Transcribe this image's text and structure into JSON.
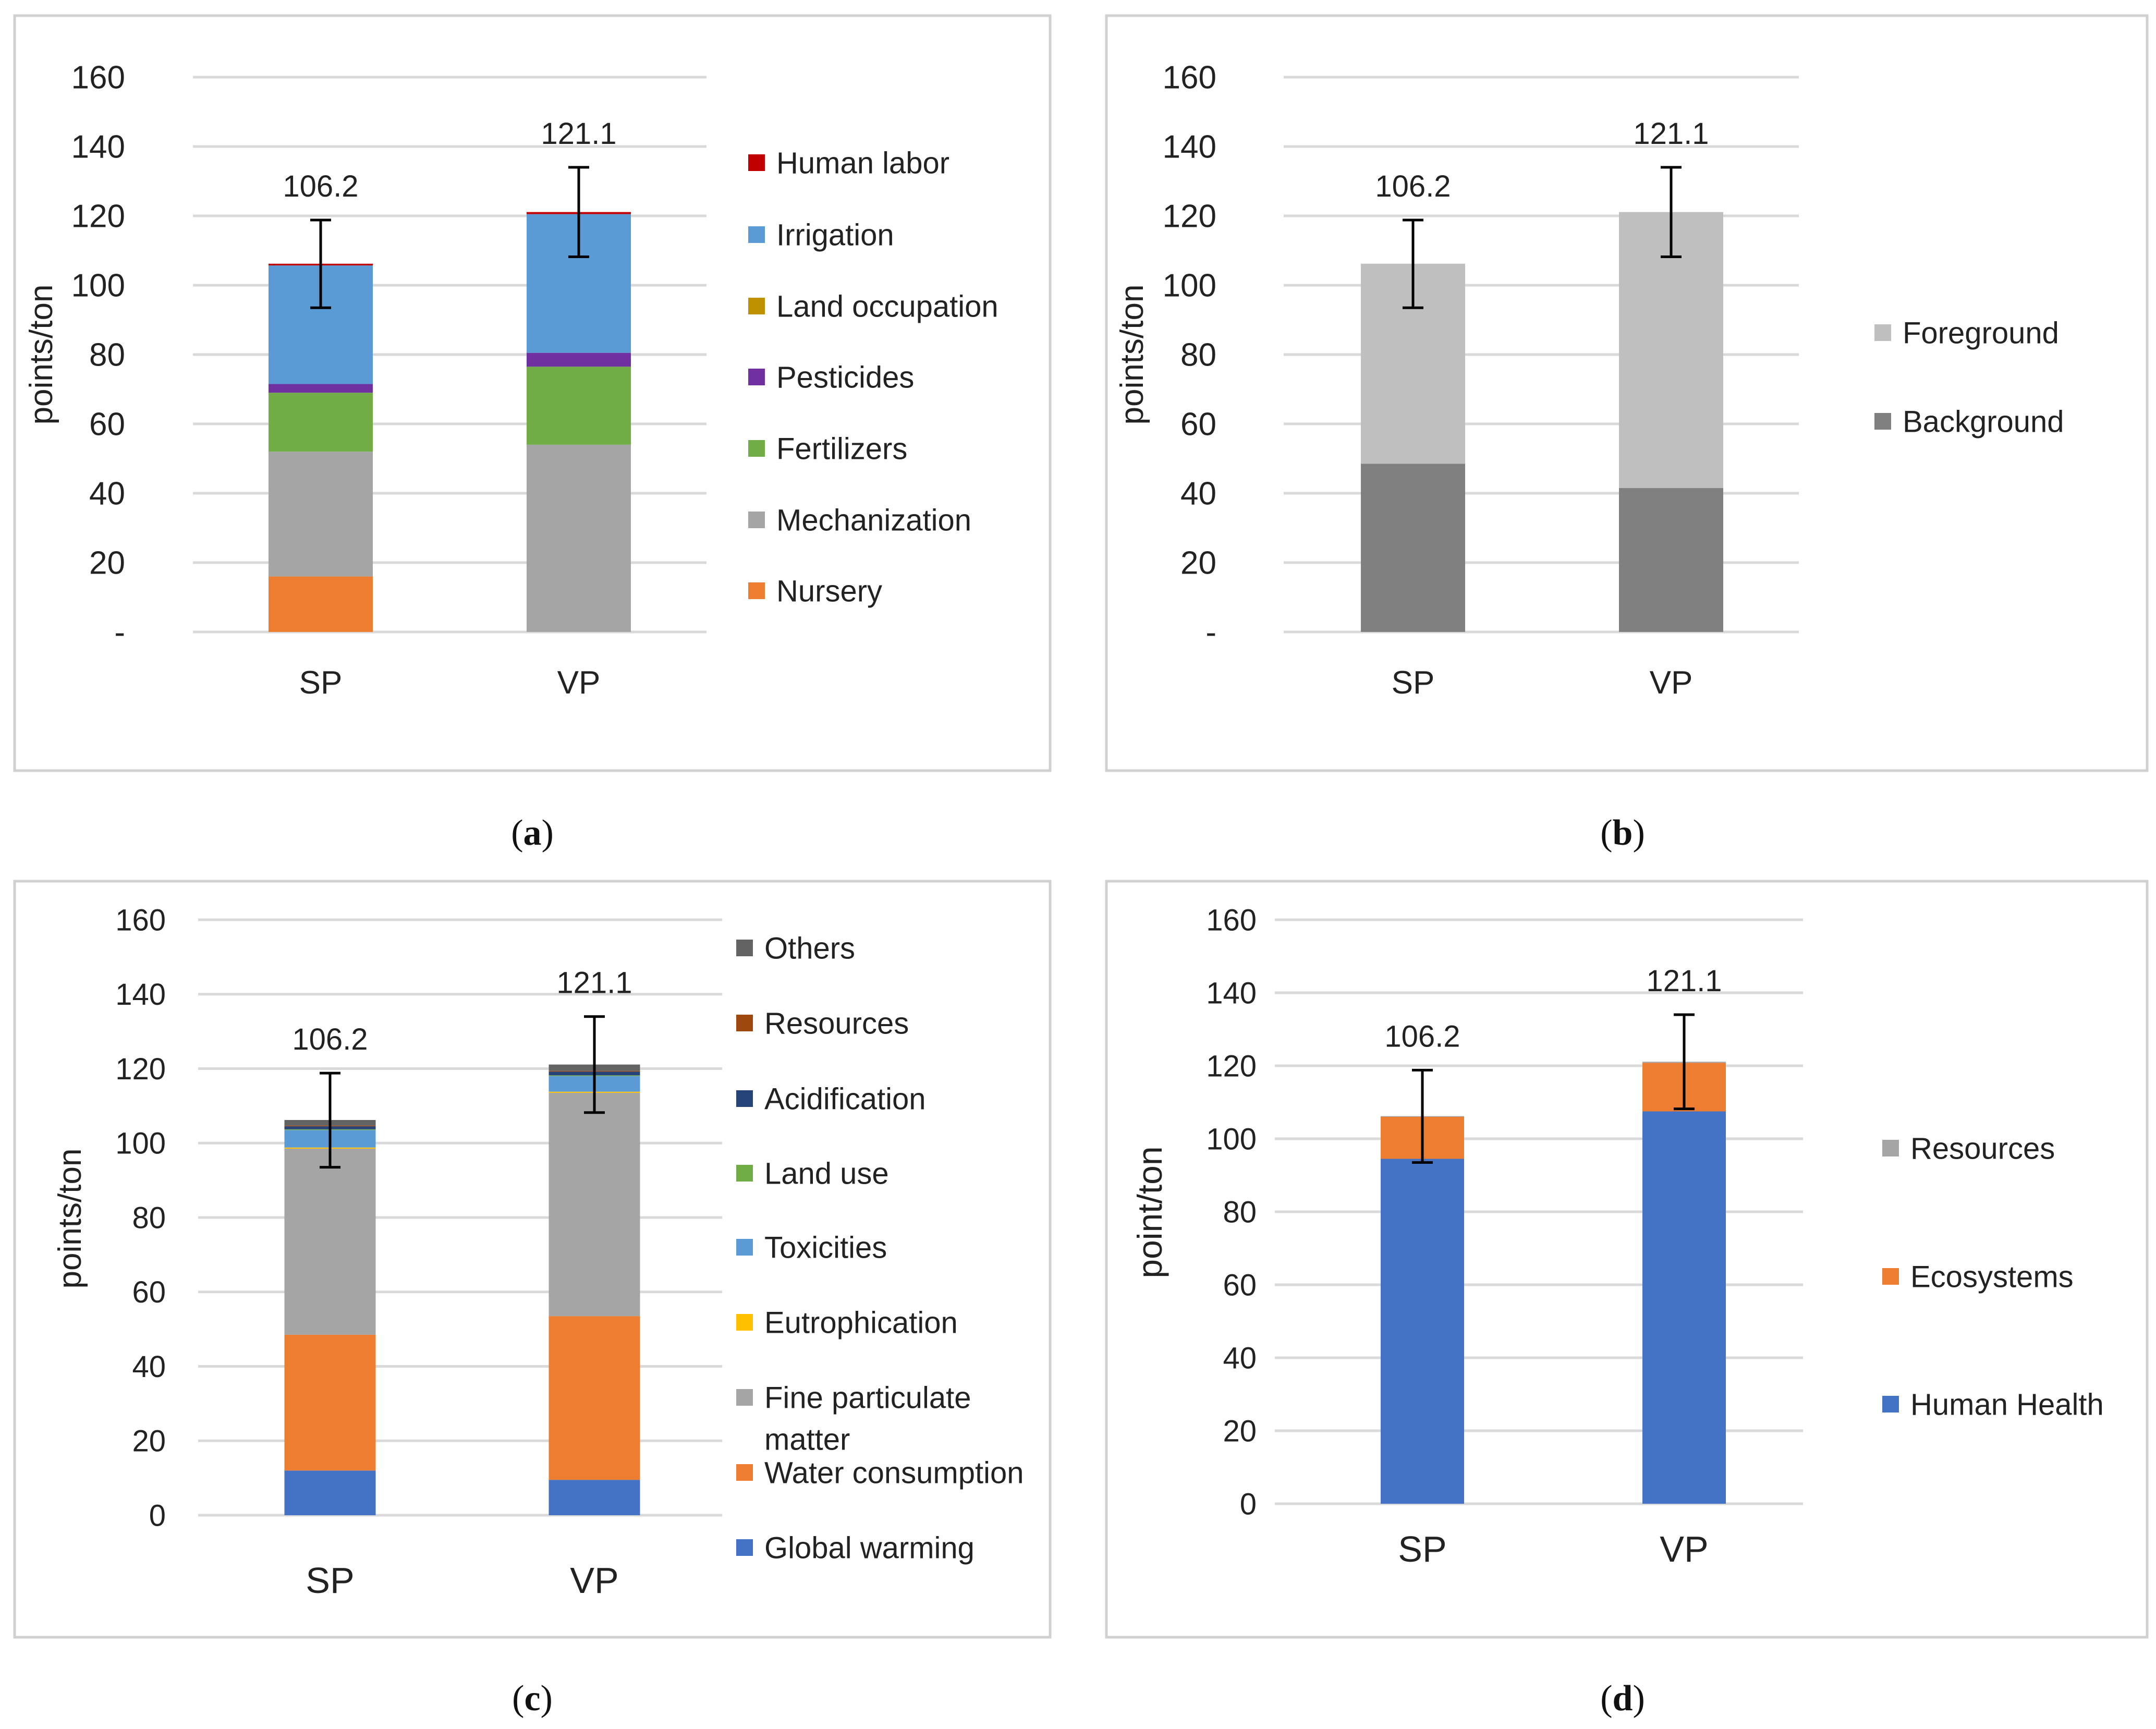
{
  "charts": [
    {
      "id": "a",
      "caption": "(a)",
      "type": "stacked-bar",
      "ylabel": "points/ton",
      "ylim": [
        0,
        160
      ],
      "yticks": [
        "-",
        "20",
        "40",
        "60",
        "80",
        "100",
        "120",
        "140",
        "160"
      ],
      "categories": [
        "SP",
        "VP"
      ],
      "totals": [
        "106.2",
        "121.1"
      ],
      "errors": [
        [
          93.5,
          118.8
        ],
        [
          108.2,
          134.0
        ]
      ],
      "legend_order": [
        "Human labor",
        "Irrigation",
        "Land occupation",
        "Pesticides",
        "Fertilizers",
        "Mechanization",
        "Nursery"
      ],
      "series": [
        {
          "name": "Nursery",
          "color": "#ED7D31",
          "values": [
            16,
            0
          ]
        },
        {
          "name": "Mechanization",
          "color": "#A5A5A5",
          "values": [
            36,
            54
          ]
        },
        {
          "name": "Fertilizers",
          "color": "#70AD47",
          "values": [
            17,
            22.5
          ]
        },
        {
          "name": "Pesticides",
          "color": "#7030A0",
          "values": [
            2.5,
            4
          ]
        },
        {
          "name": "Land occupation",
          "color": "#BF9000",
          "values": [
            0,
            0
          ]
        },
        {
          "name": "Irrigation",
          "color": "#5B9BD5",
          "values": [
            34.2,
            40
          ]
        },
        {
          "name": "Human labor",
          "color": "#C00000",
          "values": [
            0.5,
            0.6
          ]
        }
      ]
    },
    {
      "id": "b",
      "caption": "(b)",
      "type": "stacked-bar",
      "ylabel": "points/ton",
      "ylim": [
        0,
        160
      ],
      "yticks": [
        "-",
        "20",
        "40",
        "60",
        "80",
        "100",
        "120",
        "140",
        "160"
      ],
      "categories": [
        "SP",
        "VP"
      ],
      "totals": [
        "106.2",
        "121.1"
      ],
      "errors": [
        [
          93.5,
          118.8
        ],
        [
          108.2,
          134.0
        ]
      ],
      "legend_order": [
        "Foreground",
        "Background"
      ],
      "series": [
        {
          "name": "Background",
          "color": "#808080",
          "values": [
            48.5,
            41.5
          ]
        },
        {
          "name": "Foreground",
          "color": "#BFBFBF",
          "values": [
            57.7,
            79.6
          ]
        }
      ]
    },
    {
      "id": "c",
      "caption": "(c)",
      "type": "stacked-bar",
      "ylabel": "points/ton",
      "ylim": [
        0,
        160
      ],
      "yticks": [
        "0",
        "20",
        "40",
        "60",
        "80",
        "100",
        "120",
        "140",
        "160"
      ],
      "categories": [
        "SP",
        "VP"
      ],
      "totals": [
        "106.2",
        "121.1"
      ],
      "errors": [
        [
          93.5,
          118.8
        ],
        [
          108.2,
          134.0
        ]
      ],
      "legend_order": [
        "Others",
        "Resources",
        "Acidification",
        "Land use",
        "Toxicities",
        "Eutrophication",
        "Fine particulate matter",
        "Water consumption",
        "Global warming"
      ],
      "series": [
        {
          "name": "Global warming",
          "color": "#4472C4",
          "values": [
            12,
            9.5
          ]
        },
        {
          "name": "Water consumption",
          "color": "#ED7D31",
          "values": [
            36.5,
            44
          ]
        },
        {
          "name": "Fine particulate matter",
          "color": "#A5A5A5",
          "values": [
            50,
            60
          ]
        },
        {
          "name": "Eutrophication",
          "color": "#FFC000",
          "values": [
            0.3,
            0.3
          ]
        },
        {
          "name": "Toxicities",
          "color": "#5B9BD5",
          "values": [
            4.7,
            4.2
          ]
        },
        {
          "name": "Land use",
          "color": "#70AD47",
          "values": [
            0.2,
            0.2
          ]
        },
        {
          "name": "Acidification",
          "color": "#264478",
          "values": [
            0.8,
            1
          ]
        },
        {
          "name": "Resources",
          "color": "#9E480E",
          "values": [
            0.2,
            0.2
          ]
        },
        {
          "name": "Others",
          "color": "#636363",
          "values": [
            1.5,
            1.7
          ]
        }
      ]
    },
    {
      "id": "d",
      "caption": "(d)",
      "type": "stacked-bar",
      "ylabel": "point/ton",
      "ylim": [
        0,
        160
      ],
      "yticks": [
        "0",
        "20",
        "40",
        "60",
        "80",
        "100",
        "120",
        "140",
        "160"
      ],
      "categories": [
        "SP",
        "VP"
      ],
      "totals": [
        "106.2",
        "121.1"
      ],
      "errors": [
        [
          93.5,
          118.8
        ],
        [
          108.2,
          134.0
        ]
      ],
      "legend_order": [
        "Resources",
        "Ecosystems",
        "Human Health"
      ],
      "series": [
        {
          "name": "Human Health",
          "color": "#4472C4",
          "values": [
            94.5,
            107.5
          ]
        },
        {
          "name": "Ecosystems",
          "color": "#ED7D31",
          "values": [
            11.5,
            13.3
          ]
        },
        {
          "name": "Resources",
          "color": "#A5A5A5",
          "values": [
            0.2,
            0.3
          ]
        }
      ]
    }
  ]
}
